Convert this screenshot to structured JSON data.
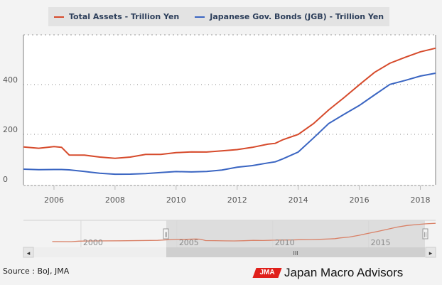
{
  "legend": {
    "items": [
      {
        "label": "Total Assets - Trillion Yen",
        "color": "#d64a2b"
      },
      {
        "label": "Japanese Gov. Bonds (JGB) - Trillion Yen",
        "color": "#3a65c2"
      }
    ]
  },
  "chart_data": {
    "type": "line",
    "title": "",
    "xlabel": "",
    "ylabel": "",
    "xlim": [
      2005.0,
      2018.5
    ],
    "ylim": [
      0,
      600
    ],
    "yticks": [
      0,
      200,
      400
    ],
    "ytick_labels": [
      "0",
      "200",
      "400"
    ],
    "xticks": [
      2006,
      2008,
      2010,
      2012,
      2014,
      2016,
      2018
    ],
    "xtick_labels": [
      "2006",
      "2008",
      "2010",
      "2012",
      "2014",
      "2016",
      "2018"
    ],
    "grid": true,
    "legend_position": "top",
    "x": [
      2005.0,
      2005.5,
      2006.0,
      2006.25,
      2006.5,
      2007.0,
      2007.5,
      2008.0,
      2008.5,
      2009.0,
      2009.5,
      2010.0,
      2010.5,
      2011.0,
      2011.5,
      2012.0,
      2012.5,
      2013.0,
      2013.25,
      2013.5,
      2014.0,
      2014.5,
      2015.0,
      2015.5,
      2016.0,
      2016.5,
      2017.0,
      2017.5,
      2018.0,
      2018.5
    ],
    "series": [
      {
        "name": "Total Assets - Trillion Yen",
        "color": "#d64a2b",
        "values": [
          149,
          147,
          154,
          148,
          114,
          113,
          108,
          106,
          112,
          120,
          117,
          123,
          128,
          131,
          137,
          140,
          146,
          157,
          162,
          180,
          203,
          245,
          297,
          344,
          397,
          450,
          489,
          512,
          531,
          543
        ]
      },
      {
        "name": "Japanese Gov. Bonds (JGB) - Trillion Yen",
        "color": "#3a65c2",
        "values": [
          63,
          61,
          59,
          56,
          54,
          50,
          46,
          43,
          41,
          40,
          43,
          49,
          51,
          54,
          58,
          66,
          71,
          83,
          91,
          105,
          131,
          184,
          240,
          278,
          317,
          362,
          403,
          416,
          431,
          443
        ]
      }
    ]
  },
  "navigator": {
    "labels": [
      "2000",
      "2005",
      "2010",
      "2015"
    ],
    "handle_glyph": "||",
    "scroll_grip": "III",
    "scroll_left": "◂",
    "scroll_right": "▸"
  },
  "footer": {
    "source": "Source : BoJ, JMA",
    "brand_logo": "JMA",
    "brand_name": "Japan Macro Advisors"
  }
}
